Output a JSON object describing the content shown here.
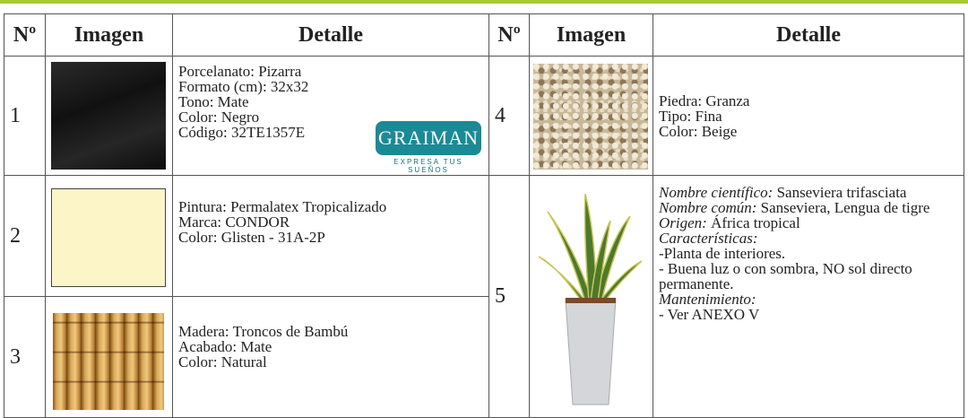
{
  "table": {
    "headers": [
      "Nº",
      "Imagen",
      "Detalle",
      "Nº",
      "Imagen",
      "Detalle"
    ],
    "items": [
      {
        "number": "1",
        "lines": [
          "Porcelanato: Pizarra",
          "Formato (cm): 32x32",
          "Tono: Mate",
          "Color: Negro",
          "Código: 32TE1357E"
        ],
        "logo": {
          "brand": "GRAIMAN",
          "tagline": "EXPRESA TUS SUEÑOS"
        }
      },
      {
        "number": "2",
        "lines": [
          "Pintura: Permalatex Tropicalizado",
          "Marca: CONDOR",
          "Color: Glisten - 31A-2P"
        ]
      },
      {
        "number": "3",
        "lines": [
          "Madera: Troncos de Bambú",
          "Acabado: Mate",
          "Color: Natural"
        ]
      },
      {
        "number": "4",
        "lines": [
          "Piedra: Granza",
          "Tipo: Fina",
          "Color: Beige"
        ]
      },
      {
        "number": "5",
        "lines": [
          {
            "label": "Nombre científico:",
            "text": "Sanseviera trifasciata"
          },
          {
            "label": "Nombre común:",
            "text": "Sanseviera, Lengua de tigre"
          },
          {
            "label": "Origen:",
            "text": "África tropical"
          },
          {
            "label": "Características:"
          },
          {
            "text": "-Planta de interiores."
          },
          {
            "text": "- Buena luz o con sombra, NO sol directo permanente."
          },
          {
            "label": "Mantenimiento:"
          },
          {
            "text": "- Ver ANEXO V"
          }
        ]
      }
    ]
  }
}
